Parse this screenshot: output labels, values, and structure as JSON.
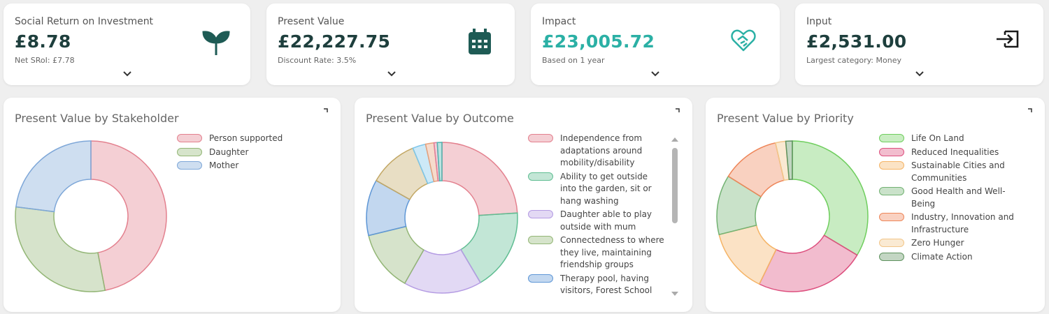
{
  "cards": [
    {
      "title": "Social Return on Investment",
      "value": "£8.78",
      "subtitle": "Net SRoI: £7.78"
    },
    {
      "title": "Present Value",
      "value": "£22,227.75",
      "subtitle": "Discount Rate: 3.5%"
    },
    {
      "title": "Impact",
      "value": "£23,005.72",
      "subtitle": "Based on 1 year"
    },
    {
      "title": "Input",
      "value": "£2,531.00",
      "subtitle": "Largest category: Money"
    }
  ],
  "chart_data": [
    {
      "type": "pie",
      "title": "Present Value by Stakeholder",
      "categories": [
        "Person supported",
        "Daughter",
        "Mother"
      ],
      "values": [
        47,
        30,
        23
      ],
      "colors": [
        "#e3808e",
        "#93b676",
        "#7ea7d8"
      ]
    },
    {
      "type": "pie",
      "title": "Present Value by Outcome",
      "categories": [
        "Independence from adaptations around mobility/disability",
        "Ability to get outside into the garden, sit or hang washing",
        "Daughter able to play outside with mum",
        "Connectedness to where they live, maintaining friendship groups",
        "Therapy pool, having visitors, Forest School",
        null,
        null,
        null,
        null,
        null
      ],
      "values": [
        24,
        17.5,
        16.7,
        13,
        12,
        10.5,
        2.8,
        1.8,
        0.7,
        1.0
      ],
      "colors": [
        "#e3808e",
        "#5fbd92",
        "#b49be3",
        "#93b676",
        "#5f97d6",
        "#c2a764",
        "#7cc6ea",
        "#e8a07a",
        "#e07f9a",
        "#4fb5b0"
      ]
    },
    {
      "type": "pie",
      "title": "Present Value by Priority",
      "categories": [
        "Life On Land",
        "Reduced Inequalities",
        "Sustainable Cities and Communities",
        "Good Health and Well-Being",
        "Industry, Innovation and Infrastructure",
        "Zero Hunger",
        "Climate Action"
      ],
      "values": [
        33.6,
        23.6,
        13.9,
        12.8,
        12.5,
        2.2,
        1.4
      ],
      "colors": [
        "#6fce5e",
        "#dd4f7e",
        "#f5b466",
        "#72b272",
        "#ee8659",
        "#f2c689",
        "#5f935f"
      ]
    }
  ]
}
